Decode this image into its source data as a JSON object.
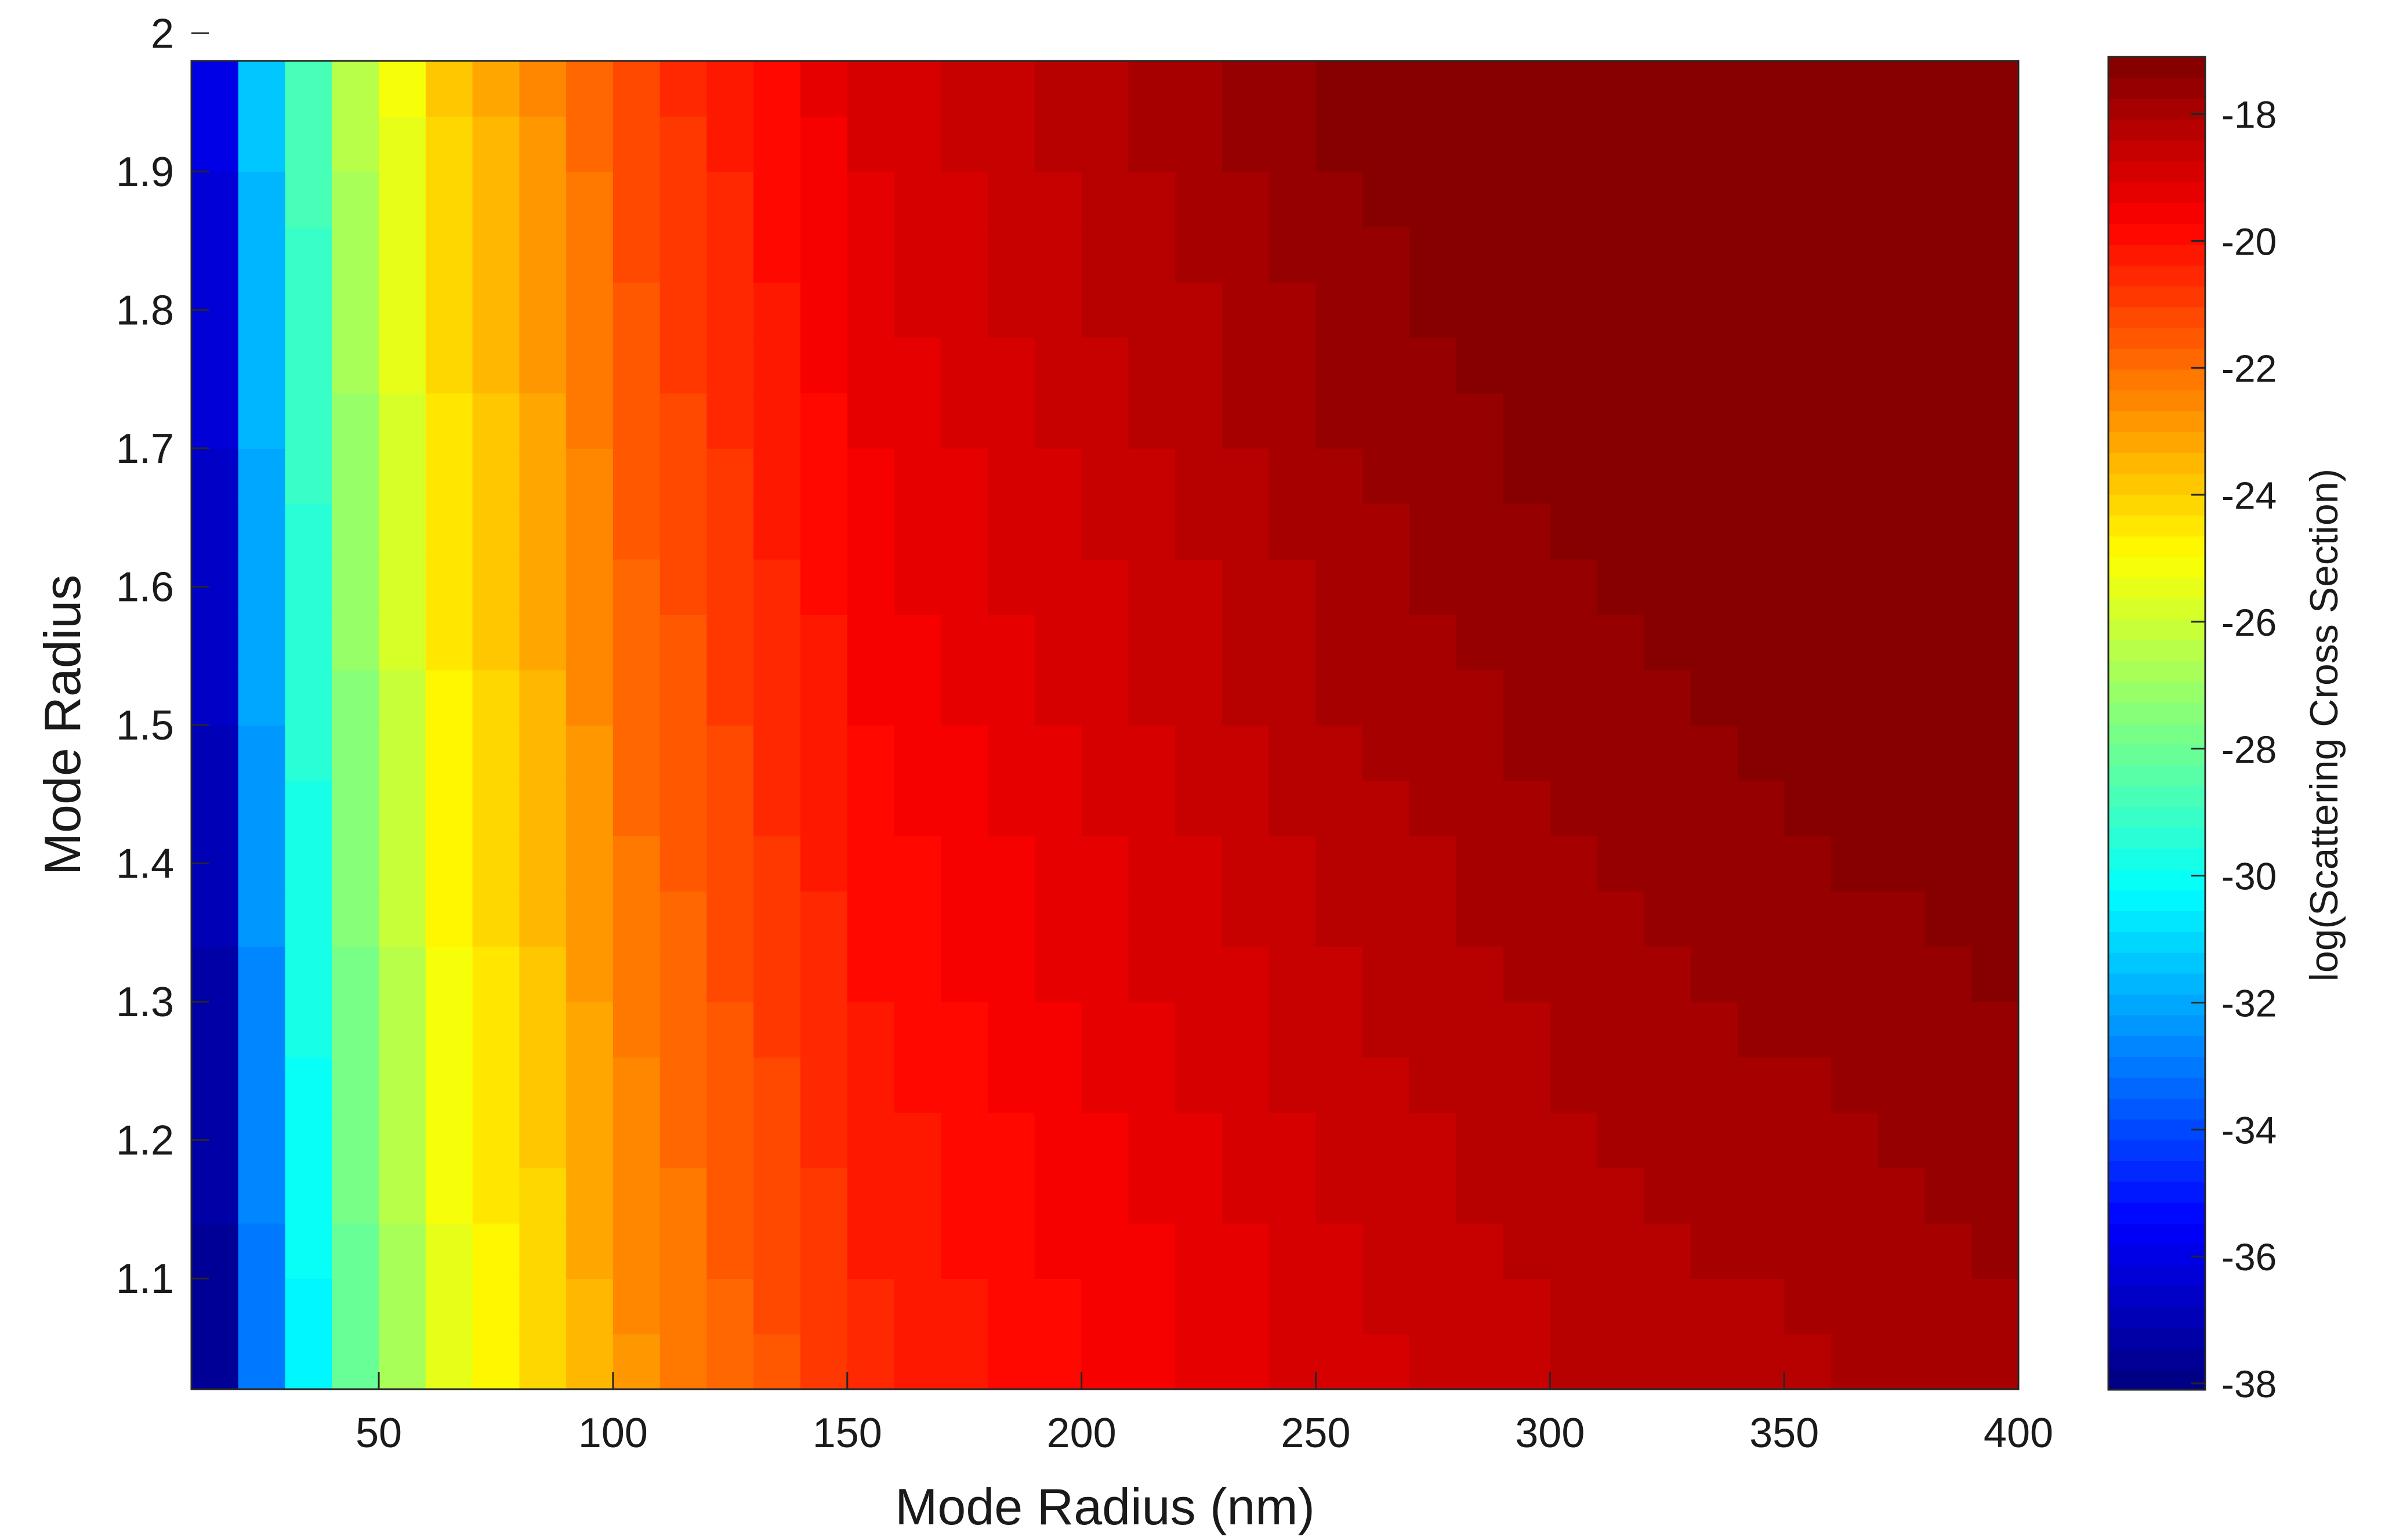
{
  "chart_data": {
    "type": "heatmap",
    "title": "",
    "xlabel": "Mode Radius (nm)",
    "ylabel": "Mode Radius",
    "xlim": [
      10,
      400
    ],
    "ylim": [
      1.02,
      2.0
    ],
    "x_ticks": [
      50,
      100,
      150,
      200,
      250,
      300,
      350,
      400
    ],
    "x_tick_labels": [
      "50",
      "100",
      "150",
      "200",
      "250",
      "300",
      "350",
      "400"
    ],
    "y_ticks": [
      1.1,
      1.2,
      1.3,
      1.4,
      1.5,
      1.6,
      1.7,
      1.8,
      1.9,
      2.0
    ],
    "y_tick_labels": [
      "1.1",
      "1.2",
      "1.3",
      "1.4",
      "1.5",
      "1.6",
      "1.7",
      "1.8",
      "1.9",
      "2"
    ],
    "x_centers": [
      10,
      20,
      30,
      40,
      50,
      60,
      70,
      80,
      90,
      100,
      110,
      120,
      130,
      140,
      150,
      160,
      170,
      180,
      190,
      200,
      210,
      220,
      230,
      240,
      250,
      260,
      270,
      280,
      290,
      300,
      310,
      320,
      330,
      340,
      350,
      360,
      370,
      380,
      390,
      400
    ],
    "y_centers": [
      1.02,
      1.06,
      1.1,
      1.14,
      1.18,
      1.22,
      1.26,
      1.3,
      1.34,
      1.38,
      1.42,
      1.46,
      1.5,
      1.54,
      1.58,
      1.62,
      1.66,
      1.7,
      1.74,
      1.78,
      1.82,
      1.86,
      1.9,
      1.94,
      1.98
    ],
    "z_description": "log(Scattering Cross Section) on a 40 x 25 grid; rises with mode radius and with the upper mode radius; about -38 at 10 nm / 1.02, about -17 at 400 nm / 2.0",
    "z_model": {
      "sample_points": [
        [
          10,
          -37.6
        ],
        [
          20,
          -33.0
        ],
        [
          30,
          -30.3
        ],
        [
          40,
          -28.1
        ],
        [
          60,
          -25.5
        ],
        [
          80,
          -24.2
        ],
        [
          100,
          -22.7
        ],
        [
          150,
          -20.5
        ],
        [
          200,
          -19.7
        ],
        [
          250,
          -18.9
        ],
        [
          300,
          -18.4
        ],
        [
          350,
          -18.1
        ],
        [
          400,
          -17.8
        ]
      ],
      "shift_per_unit_y": 1.7,
      "reference_y": 1.02
    },
    "colorbar": {
      "label": "log(Scattering Cross Section)",
      "zlim": [
        -38.1,
        -17.1
      ],
      "ticks": [
        -38,
        -36,
        -34,
        -32,
        -30,
        -28,
        -26,
        -24,
        -22,
        -20,
        -18
      ],
      "tick_labels": [
        "-38",
        "-36",
        "-34",
        "-32",
        "-30",
        "-28",
        "-26",
        "-24",
        "-22",
        "-20",
        "-18"
      ],
      "colormap": "jet",
      "levels": 64,
      "colormap_stops": [
        "#00008f",
        "#0000ff",
        "#00ffff",
        "#ffff00",
        "#ff0000",
        "#800000"
      ]
    },
    "grid": false,
    "legend": "none"
  }
}
